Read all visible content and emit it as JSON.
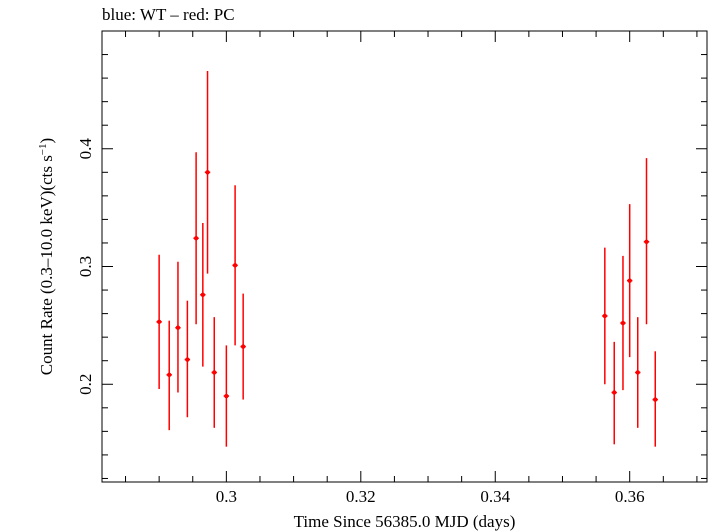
{
  "chart_data": {
    "type": "scatter",
    "title": "blue: WT – red: PC",
    "xlabel": "Time Since 56385.0 MJD (days)",
    "ylabel": "Count Rate (0.3–10.0 keV)(cts s",
    "ylabel_sup": "−1",
    "ylabel_end": ")",
    "xlim": [
      0.2815,
      0.3715
    ],
    "ylim": [
      0.117,
      0.5
    ],
    "xticks": [
      0.3,
      0.32,
      0.34,
      0.36
    ],
    "xtick_labels": [
      "0.3",
      "0.32",
      "0.34",
      "0.36"
    ],
    "yticks": [
      0.2,
      0.3,
      0.4
    ],
    "ytick_labels": [
      "0.2",
      "0.3",
      "0.4"
    ],
    "grid": false,
    "series": [
      {
        "color": "#ff0000",
        "points": [
          {
            "x": 0.29,
            "xerr": 0.0004,
            "y": 0.253,
            "ylo": 0.196,
            "yhi": 0.31
          },
          {
            "x": 0.2915,
            "xerr": 0.0004,
            "y": 0.208,
            "ylo": 0.161,
            "yhi": 0.254
          },
          {
            "x": 0.2928,
            "xerr": 0.0004,
            "y": 0.248,
            "ylo": 0.193,
            "yhi": 0.304
          },
          {
            "x": 0.2942,
            "xerr": 0.0004,
            "y": 0.221,
            "ylo": 0.172,
            "yhi": 0.271
          },
          {
            "x": 0.2955,
            "xerr": 0.0004,
            "y": 0.324,
            "ylo": 0.251,
            "yhi": 0.397
          },
          {
            "x": 0.2965,
            "xerr": 0.0004,
            "y": 0.276,
            "ylo": 0.215,
            "yhi": 0.337
          },
          {
            "x": 0.2972,
            "xerr": 0.0004,
            "y": 0.38,
            "ylo": 0.294,
            "yhi": 0.466
          },
          {
            "x": 0.2982,
            "xerr": 0.0004,
            "y": 0.21,
            "ylo": 0.163,
            "yhi": 0.257
          },
          {
            "x": 0.3,
            "xerr": 0.0004,
            "y": 0.19,
            "ylo": 0.147,
            "yhi": 0.233
          },
          {
            "x": 0.3013,
            "xerr": 0.0004,
            "y": 0.301,
            "ylo": 0.233,
            "yhi": 0.369
          },
          {
            "x": 0.3025,
            "xerr": 0.0004,
            "y": 0.232,
            "ylo": 0.187,
            "yhi": 0.277
          },
          {
            "x": 0.3563,
            "xerr": 0.0004,
            "y": 0.258,
            "ylo": 0.2,
            "yhi": 0.316
          },
          {
            "x": 0.3577,
            "xerr": 0.0004,
            "y": 0.193,
            "ylo": 0.149,
            "yhi": 0.236
          },
          {
            "x": 0.359,
            "xerr": 0.0004,
            "y": 0.252,
            "ylo": 0.195,
            "yhi": 0.309
          },
          {
            "x": 0.36,
            "xerr": 0.0004,
            "y": 0.288,
            "ylo": 0.223,
            "yhi": 0.353
          },
          {
            "x": 0.3612,
            "xerr": 0.0004,
            "y": 0.21,
            "ylo": 0.163,
            "yhi": 0.257
          },
          {
            "x": 0.3625,
            "xerr": 0.0004,
            "y": 0.321,
            "ylo": 0.251,
            "yhi": 0.392
          },
          {
            "x": 0.3638,
            "xerr": 0.0004,
            "y": 0.187,
            "ylo": 0.147,
            "yhi": 0.228
          }
        ]
      }
    ]
  }
}
